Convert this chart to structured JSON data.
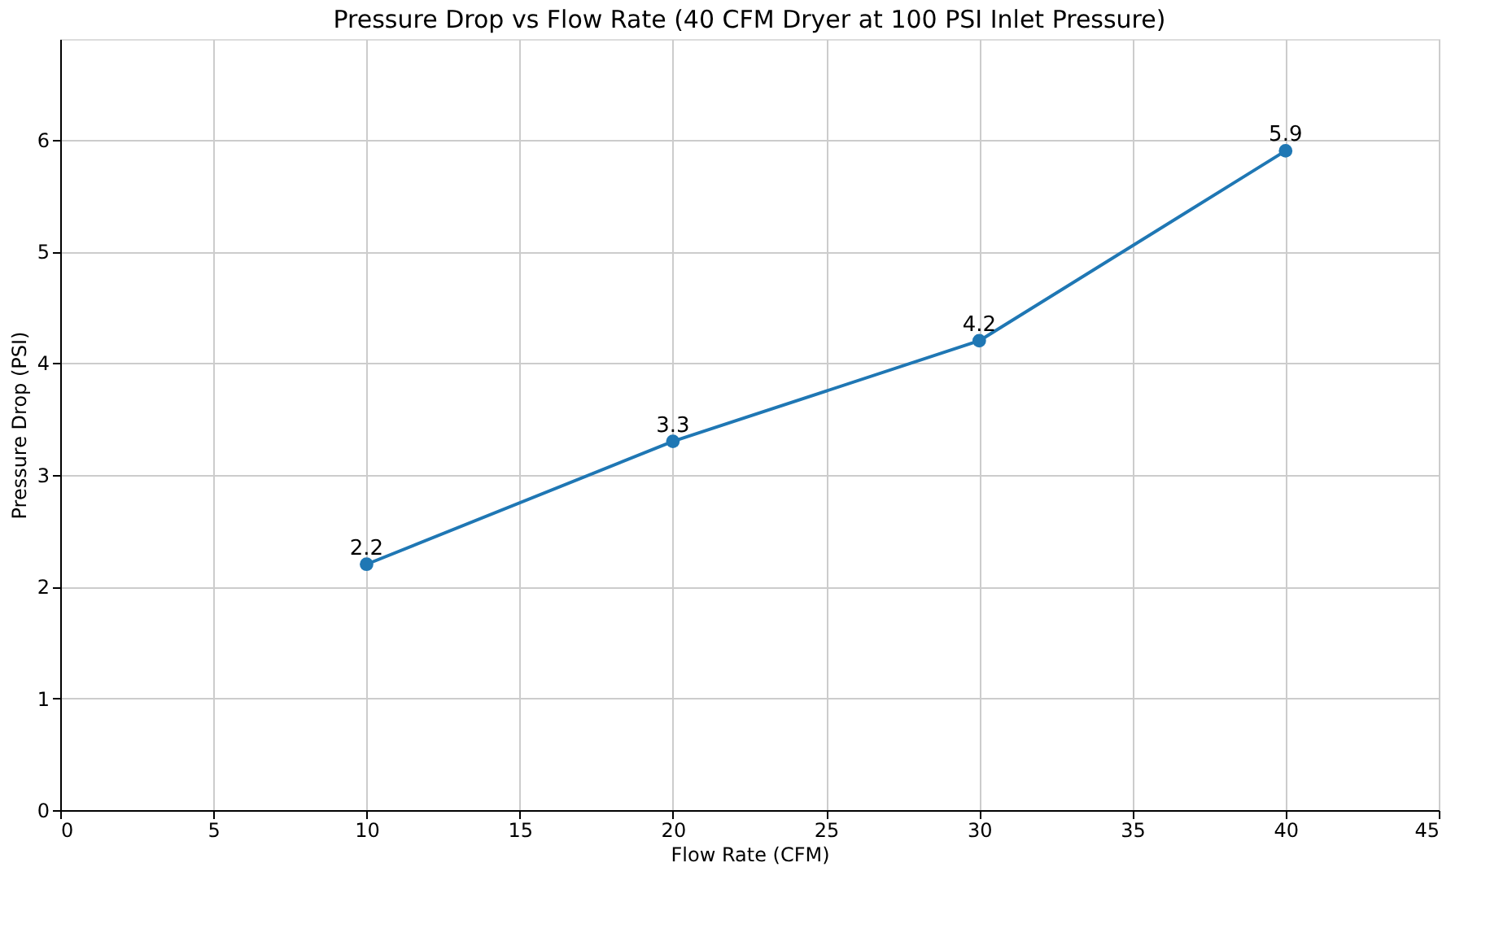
{
  "chart_data": {
    "type": "line",
    "title": "Pressure Drop vs Flow Rate (40 CFM Dryer at 100 PSI Inlet Pressure)",
    "xlabel": "Flow Rate (CFM)",
    "ylabel": "Pressure Drop (PSI)",
    "x": [
      10,
      20,
      30,
      40
    ],
    "series": [
      {
        "color": "#1f77b4",
        "values": [
          2.2,
          3.3,
          4.2,
          5.9
        ]
      }
    ],
    "xlim": [
      0,
      45
    ],
    "xticks": [
      0,
      5,
      10,
      15,
      20,
      25,
      30,
      35,
      40,
      45
    ],
    "ylim": [
      0,
      6.9
    ],
    "yticks": [
      0,
      1,
      2,
      3,
      4,
      5,
      6
    ],
    "grid": true,
    "marker": "circle",
    "line_style": "solid",
    "data_labels": true
  }
}
